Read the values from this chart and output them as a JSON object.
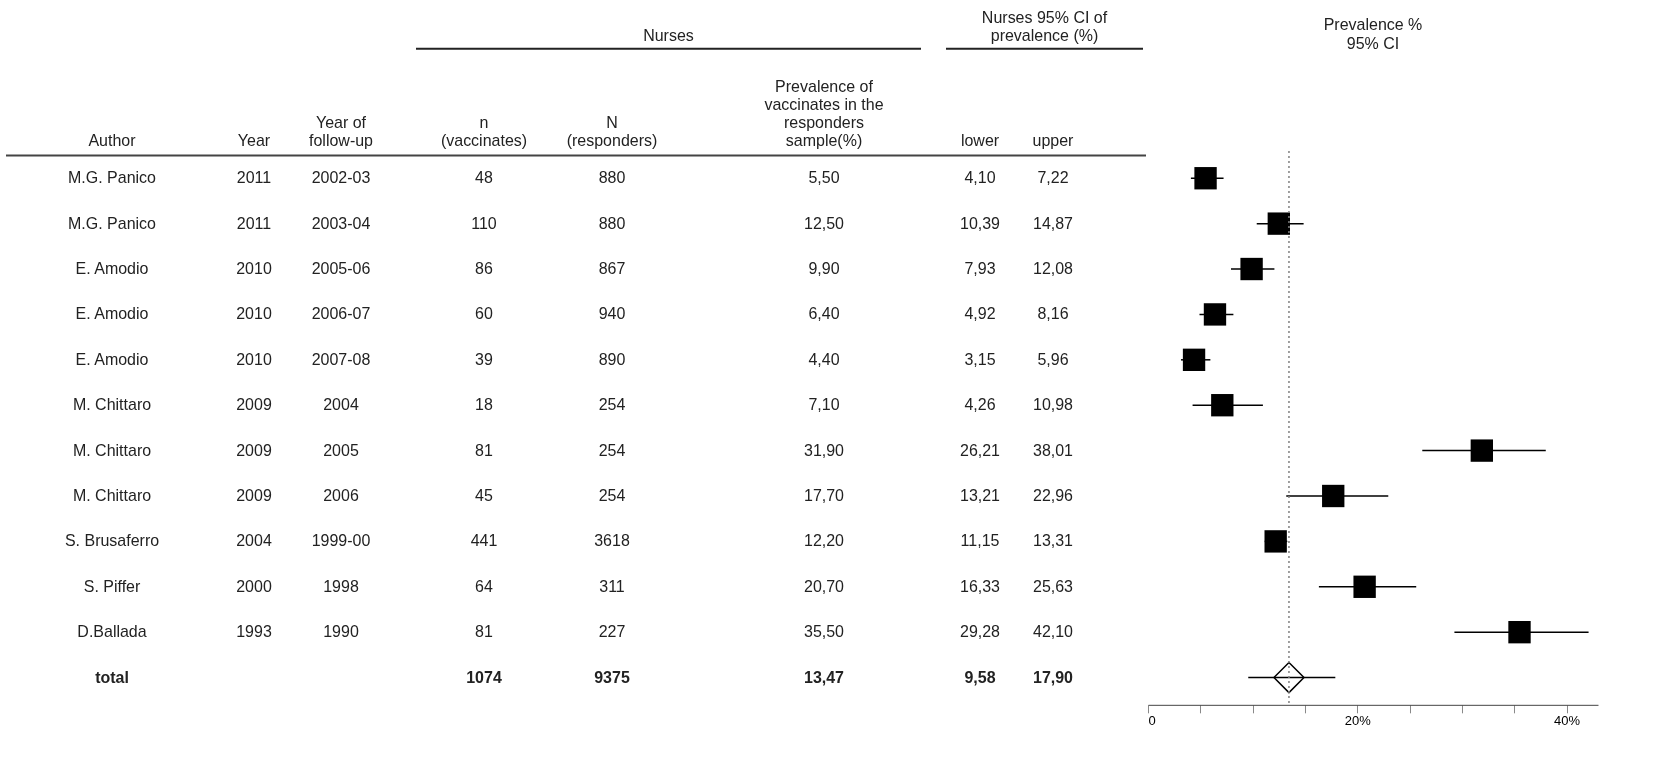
{
  "chart_data": [
    {
      "type": "other",
      "annotations": [
        "Nurses",
        "Nurses 95% CI of\nprevalence (%)"
      ],
      "categories": [
        "Author",
        "Year",
        "Year of\nfollow-up",
        "n\n(vaccinates)",
        "N\n(responders)",
        "Prevalence of\nvaccinates in the\nresponders\nsample(%)",
        "lower",
        "upper"
      ],
      "cell_labels": [
        [
          "M.G. Panico",
          "2011",
          "2002-03",
          "48",
          "880",
          "5,50",
          "4,10",
          "7,22"
        ],
        [
          "M.G. Panico",
          "2011",
          "2003-04",
          "110",
          "880",
          "12,50",
          "10,39",
          "14,87"
        ],
        [
          "E. Amodio",
          "2010",
          "2005-06",
          "86",
          "867",
          "9,90",
          "7,93",
          "12,08"
        ],
        [
          "E. Amodio",
          "2010",
          "2006-07",
          "60",
          "940",
          "6,40",
          "4,92",
          "8,16"
        ],
        [
          "E. Amodio",
          "2010",
          "2007-08",
          "39",
          "890",
          "4,40",
          "3,15",
          "5,96"
        ],
        [
          "M. Chittaro",
          "2009",
          "2004",
          "18",
          "254",
          "7,10",
          "4,26",
          "10,98"
        ],
        [
          "M. Chittaro",
          "2009",
          "2005",
          "81",
          "254",
          "31,90",
          "26,21",
          "38,01"
        ],
        [
          "M. Chittaro",
          "2009",
          "2006",
          "45",
          "254",
          "17,70",
          "13,21",
          "22,96"
        ],
        [
          "S. Brusaferro",
          "2004",
          "1999-00",
          "441",
          "3618",
          "12,20",
          "11,15",
          "13,31"
        ],
        [
          "S. Piffer",
          "2000",
          "1998",
          "64",
          "311",
          "20,70",
          "16,33",
          "25,63"
        ],
        [
          "D.Ballada",
          "1993",
          "1990",
          "81",
          "227",
          "35,50",
          "29,28",
          "42,10"
        ],
        [
          "total",
          null,
          null,
          "1074",
          "9375",
          "13,47",
          "9,58",
          "17,90"
        ]
      ]
    },
    {
      "type": "scatter",
      "orientation": "horizontal",
      "title": "Prevalence %\n95% CI",
      "tick_labels": "x",
      "categories": [
        null,
        null,
        null,
        null,
        null,
        null,
        null,
        null,
        null,
        null,
        null,
        null
      ],
      "xlim": [
        0,
        43
      ],
      "xticks": [
        0,
        {
          "value": 5,
          "label": null
        },
        {
          "value": 10,
          "label": null
        },
        {
          "value": 15,
          "label": null
        },
        {
          "value": 20,
          "label": "20%"
        },
        {
          "value": 25,
          "label": null
        },
        {
          "value": 30,
          "label": null
        },
        {
          "value": 35,
          "label": null
        },
        {
          "value": 40,
          "label": "40%"
        }
      ],
      "ref_lines": [
        {
          "axis": "x",
          "value": 13.47,
          "color": "#808080",
          "line_style": "dotted"
        }
      ],
      "series": [
        {
          "color": "#000000",
          "marker": "square",
          "values": [
            5.5,
            12.5,
            9.9,
            6.4,
            4.4,
            7.1,
            31.9,
            17.7,
            12.2,
            20.7,
            35.5,
            null
          ],
          "errors": [
            [
              4.1,
              7.22
            ],
            [
              10.39,
              14.87
            ],
            [
              7.93,
              12.08
            ],
            [
              4.92,
              8.16
            ],
            [
              3.15,
              5.96
            ],
            [
              4.26,
              10.98
            ],
            [
              26.21,
              38.01
            ],
            [
              13.21,
              22.96
            ],
            [
              11.15,
              13.31
            ],
            [
              16.33,
              25.63
            ],
            [
              29.28,
              42.1
            ],
            null
          ]
        },
        {
          "color": "#000000",
          "marker": "diamond",
          "values": [
            null,
            null,
            null,
            null,
            null,
            null,
            null,
            null,
            null,
            null,
            null,
            13.47
          ],
          "errors": [
            null,
            null,
            null,
            null,
            null,
            null,
            null,
            null,
            null,
            null,
            null,
            [
              9.58,
              17.9
            ]
          ]
        }
      ]
    }
  ]
}
